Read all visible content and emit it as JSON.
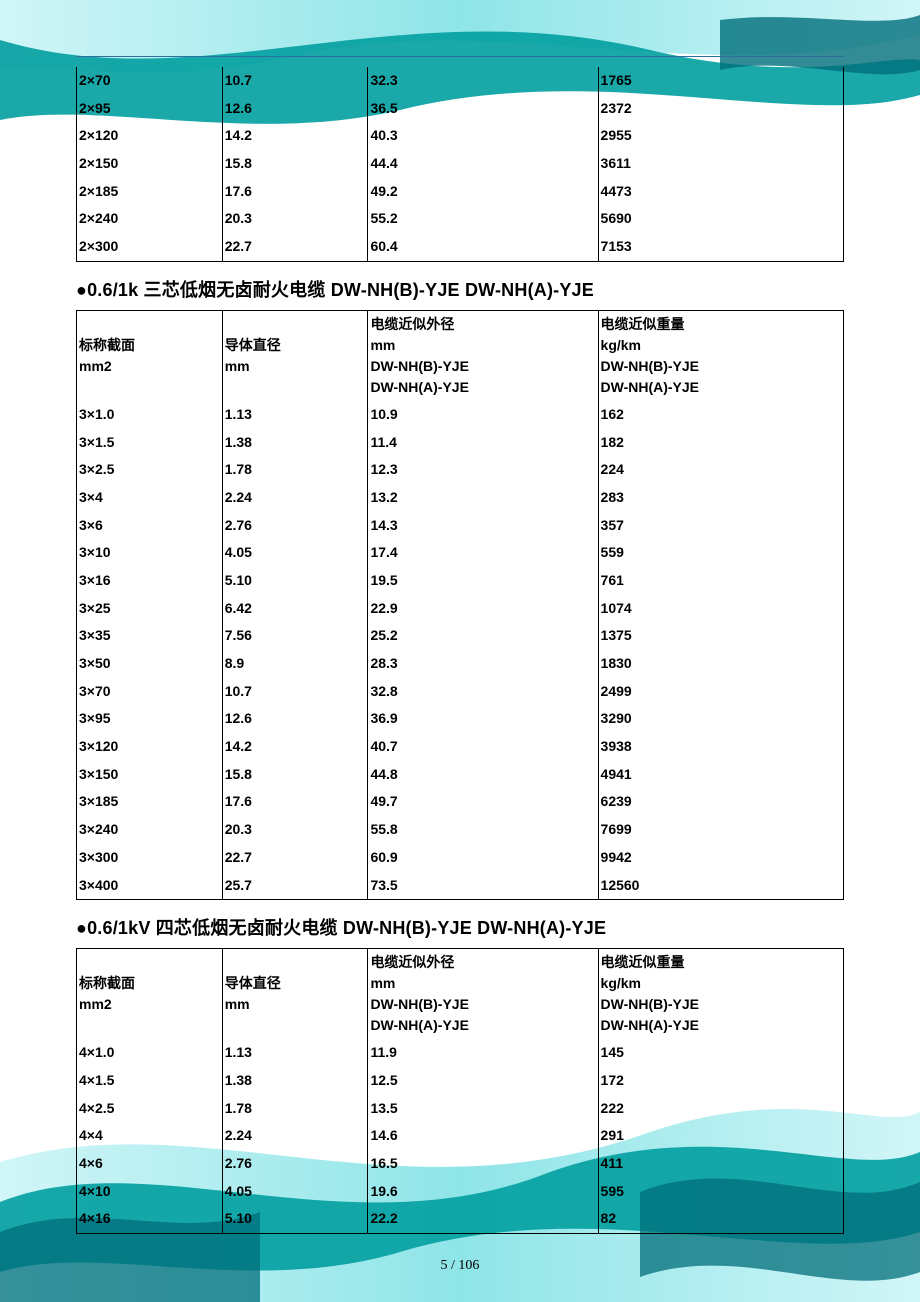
{
  "colors": {
    "rule": "#2f6f9f",
    "bg_light": "#b6f0f4",
    "bg_dark": "#029fa0",
    "bg_deep": "#006e7a",
    "text": "#000000",
    "page": "#ffffff"
  },
  "table1": {
    "cols": [
      "19%",
      "19%",
      "30%",
      "32%"
    ],
    "rows": [
      [
        "2×70",
        "10.7",
        "32.3",
        "1765"
      ],
      [
        "2×95",
        "12.6",
        "36.5",
        "2372"
      ],
      [
        "2×120",
        "14.2",
        "40.3",
        "2955"
      ],
      [
        "2×150",
        "15.8",
        "44.4",
        "3611"
      ],
      [
        "2×185",
        "17.6",
        "49.2",
        "4473"
      ],
      [
        "2×240",
        "20.3",
        "55.2",
        "5690"
      ],
      [
        "2×300",
        "22.7",
        "60.4",
        "7153"
      ]
    ]
  },
  "section2_title": "●0.6/1k 三芯低烟无卤耐火电缆 DW-NH(B)-YJE DW-NH(A)-YJE",
  "table2": {
    "cols": [
      "19%",
      "19%",
      "30%",
      "32%"
    ],
    "header": [
      [
        "标称截面",
        "mm2"
      ],
      [
        "导体直径",
        "mm"
      ],
      [
        "电缆近似外径",
        "mm",
        "DW-NH(B)-YJE",
        "DW-NH(A)-YJE"
      ],
      [
        "电缆近似重量",
        "kg/km",
        "DW-NH(B)-YJE",
        "DW-NH(A)-YJE"
      ]
    ],
    "rows": [
      [
        "3×1.0",
        "1.13",
        "10.9",
        "162"
      ],
      [
        "3×1.5",
        "1.38",
        "11.4",
        "182"
      ],
      [
        "3×2.5",
        "1.78",
        "12.3",
        "224"
      ],
      [
        "3×4",
        "2.24",
        "13.2",
        "283"
      ],
      [
        "3×6",
        "2.76",
        "14.3",
        "357"
      ],
      [
        "3×10",
        "4.05",
        "17.4",
        "559"
      ],
      [
        "3×16",
        "5.10",
        "19.5",
        "761"
      ],
      [
        "3×25",
        "6.42",
        "22.9",
        "1074"
      ],
      [
        "3×35",
        "7.56",
        "25.2",
        "1375"
      ],
      [
        "3×50",
        "8.9",
        "28.3",
        "1830"
      ],
      [
        "3×70",
        "10.7",
        "32.8",
        "2499"
      ],
      [
        "3×95",
        "12.6",
        "36.9",
        "3290"
      ],
      [
        "3×120",
        "14.2",
        "40.7",
        "3938"
      ],
      [
        "3×150",
        "15.8",
        "44.8",
        "4941"
      ],
      [
        "3×185",
        "17.6",
        "49.7",
        "6239"
      ],
      [
        "3×240",
        "20.3",
        "55.8",
        "7699"
      ],
      [
        "3×300",
        "22.7",
        "60.9",
        "9942"
      ],
      [
        "3×400",
        "25.7",
        "73.5",
        "12560"
      ]
    ]
  },
  "section3_title": "●0.6/1kV 四芯低烟无卤耐火电缆 DW-NH(B)-YJE DW-NH(A)-YJE",
  "table3": {
    "cols": [
      "19%",
      "19%",
      "30%",
      "32%"
    ],
    "header": [
      [
        "标称截面",
        "mm2"
      ],
      [
        "导体直径",
        "mm"
      ],
      [
        "电缆近似外径",
        "mm",
        "DW-NH(B)-YJE",
        "DW-NH(A)-YJE"
      ],
      [
        "电缆近似重量",
        "kg/km",
        "DW-NH(B)-YJE",
        "DW-NH(A)-YJE"
      ]
    ],
    "rows": [
      [
        "4×1.0",
        "1.13",
        "11.9",
        "145"
      ],
      [
        "4×1.5",
        "1.38",
        "12.5",
        "172"
      ],
      [
        "4×2.5",
        "1.78",
        "13.5",
        "222"
      ],
      [
        "4×4",
        "2.24",
        "14.6",
        "291"
      ],
      [
        "4×6",
        "2.76",
        "16.5",
        "411"
      ],
      [
        "4×10",
        "4.05",
        "19.6",
        "595"
      ],
      [
        "4×16",
        "5.10",
        "22.2",
        "82"
      ]
    ]
  },
  "footer": "5 / 106"
}
